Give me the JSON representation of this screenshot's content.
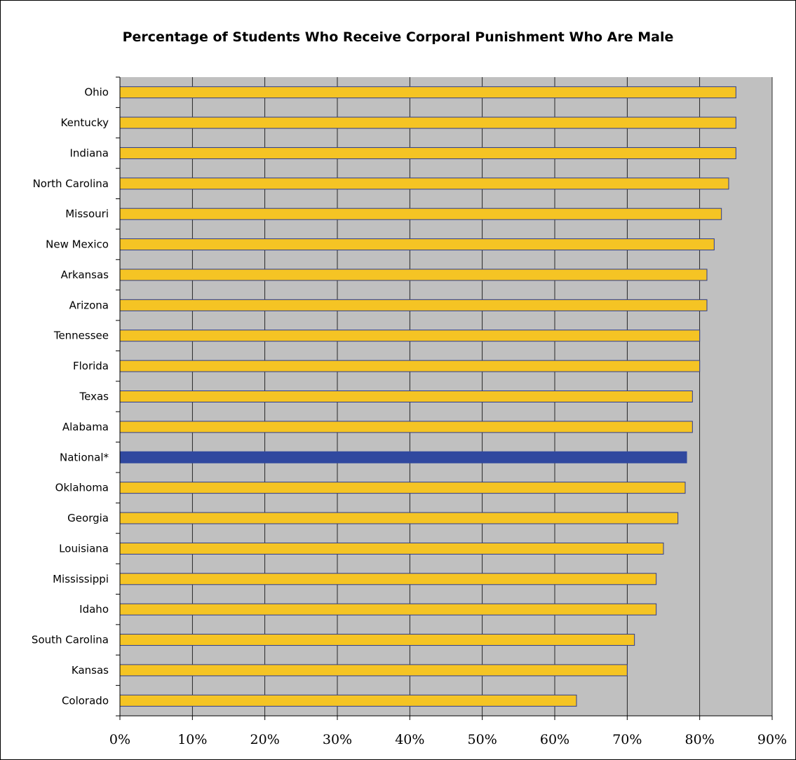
{
  "chart_data": {
    "type": "bar",
    "orientation": "horizontal",
    "title": "Percentage of Students Who Receive Corporal Punishment Who Are Male",
    "xlabel": "",
    "ylabel": "",
    "xlim": [
      0,
      90
    ],
    "x_ticks": [
      "0%",
      "10%",
      "20%",
      "30%",
      "40%",
      "50%",
      "60%",
      "70%",
      "80%",
      "90%"
    ],
    "grid": true,
    "legend": "none",
    "bar_color": "#f5c424",
    "highlight_color": "#30489f",
    "plot_background": "#c0c0c0",
    "highlight_category": "National*",
    "categories": [
      "Ohio",
      "Kentucky",
      "Indiana",
      "North Carolina",
      "Missouri",
      "New Mexico",
      "Arkansas",
      "Arizona",
      "Tennessee",
      "Florida",
      "Texas",
      "Alabama",
      "National*",
      "Oklahoma",
      "Georgia",
      "Louisiana",
      "Mississippi",
      "Idaho",
      "South Carolina",
      "Kansas",
      "Colorado"
    ],
    "values": [
      85,
      85,
      85,
      84,
      83,
      82,
      81,
      81,
      80,
      80,
      79,
      79,
      78.2,
      78,
      77,
      75,
      74,
      74,
      71,
      70,
      63
    ]
  }
}
